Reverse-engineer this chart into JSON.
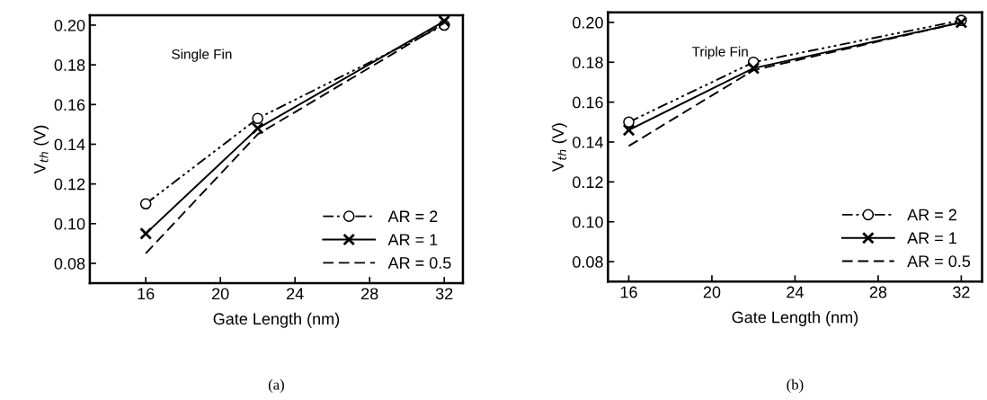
{
  "chart_data": [
    {
      "type": "line",
      "xlabel": "Gate Length (nm)",
      "ylabel": "V$_{th}$ (V)",
      "annotations": [
        "Single Fin",
        "(a)"
      ],
      "xlim": [
        13,
        33
      ],
      "ylim": [
        0.07,
        0.205
      ],
      "xticks": [
        16,
        20,
        24,
        28,
        32
      ],
      "yticks": [
        {
          "value": 0.08,
          "label": "0.08"
        },
        {
          "value": 0.1,
          "label": "0.10"
        },
        {
          "value": 0.12,
          "label": "0.12"
        },
        {
          "value": 0.14,
          "label": "0.14"
        },
        {
          "value": 0.16,
          "label": "0.16"
        },
        {
          "value": 0.18,
          "label": "0.18"
        },
        {
          "value": 0.2,
          "label": "0.20"
        }
      ],
      "grid": false,
      "legend": "bottom right",
      "x": [
        16,
        22,
        32
      ],
      "series": [
        {
          "name": "AR = 2",
          "color": "#000000",
          "values": [
            0.11,
            0.153,
            0.2
          ],
          "marker": "circle",
          "line_style": "dashdotdot"
        },
        {
          "name": "AR = 1",
          "color": "#000000",
          "values": [
            0.095,
            0.148,
            0.202
          ],
          "marker": "cross",
          "line_style": "solid"
        },
        {
          "name": "AR = 0.5",
          "color": "#000000",
          "values": [
            0.085,
            0.145,
            0.201
          ],
          "marker": "none",
          "line_style": "dashed"
        }
      ]
    },
    {
      "type": "line",
      "xlabel": "Gate Length (nm)",
      "ylabel": "V$_{th}$ (V)",
      "annotations": [
        "Triple Fin",
        "(b)"
      ],
      "xlim": [
        15,
        33
      ],
      "ylim": [
        0.07,
        0.205
      ],
      "xticks": [
        16,
        20,
        24,
        28,
        32
      ],
      "yticks": [
        {
          "value": 0.08,
          "label": "0.08"
        },
        {
          "value": 0.1,
          "label": "0.10"
        },
        {
          "value": 0.12,
          "label": "0.12"
        },
        {
          "value": 0.14,
          "label": "0.14"
        },
        {
          "value": 0.16,
          "label": "0.16"
        },
        {
          "value": 0.18,
          "label": "0.18"
        },
        {
          "value": 0.2,
          "label": "0.20"
        }
      ],
      "grid": false,
      "legend": "bottom right",
      "x": [
        16,
        22,
        32
      ],
      "series": [
        {
          "name": "AR = 2",
          "color": "#000000",
          "values": [
            0.15,
            0.18,
            0.201
          ],
          "marker": "circle",
          "line_style": "dashdotdot"
        },
        {
          "name": "AR = 1",
          "color": "#000000",
          "values": [
            0.146,
            0.177,
            0.2
          ],
          "marker": "cross",
          "line_style": "solid"
        },
        {
          "name": "AR = 0.5",
          "color": "#000000",
          "values": [
            0.138,
            0.176,
            0.2
          ],
          "marker": "none",
          "line_style": "dashed"
        }
      ]
    }
  ]
}
